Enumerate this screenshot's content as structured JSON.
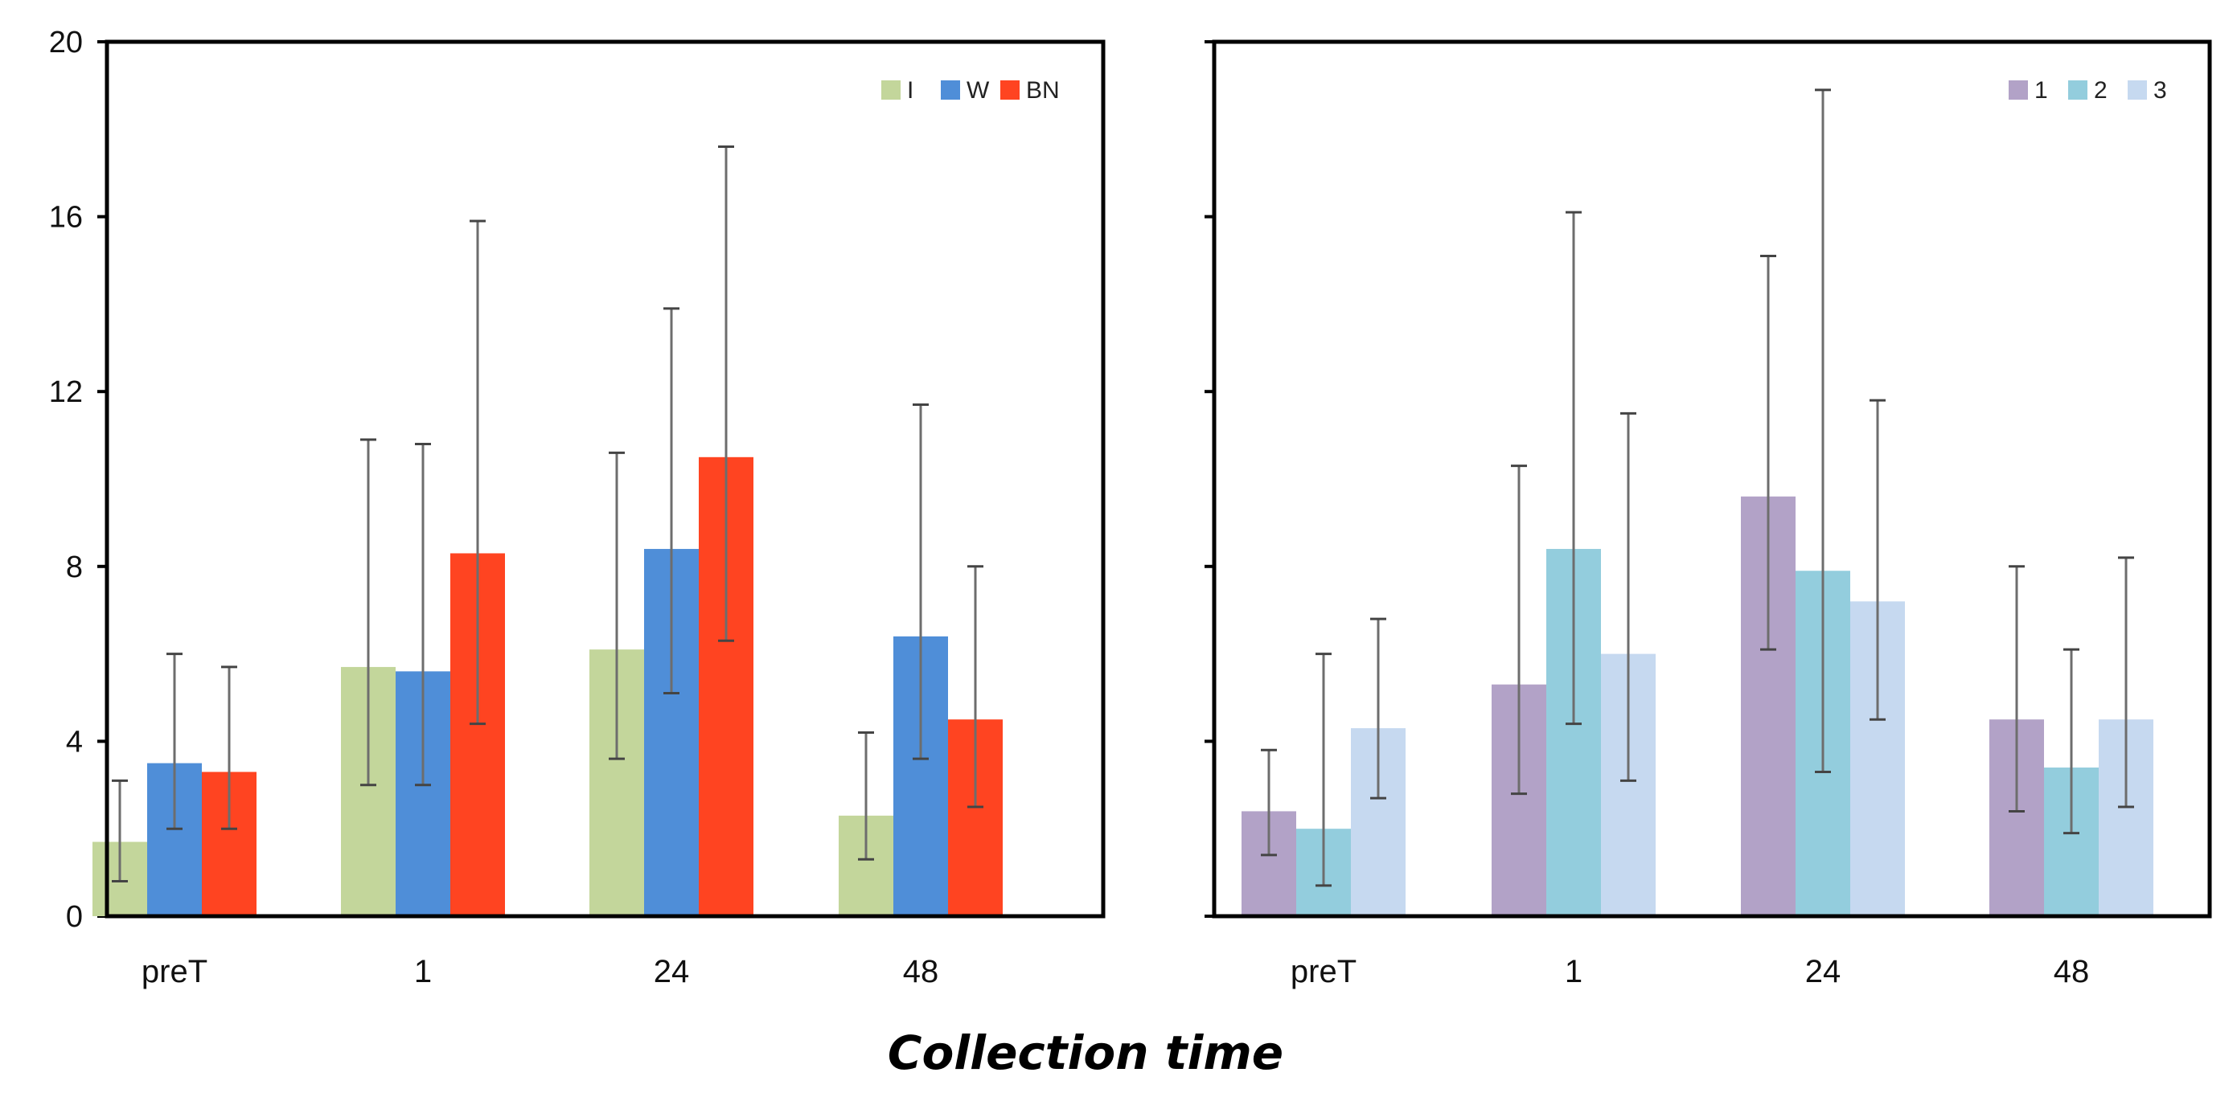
{
  "x_axis_title": "Collection time",
  "chart_data": [
    {
      "type": "bar",
      "title": "",
      "xlabel": "Collection time",
      "ylabel": "",
      "ylim": [
        0,
        20
      ],
      "yticks": [
        0,
        4,
        8,
        12,
        16,
        20
      ],
      "legend_position": "top-right",
      "categories": [
        "preT",
        "1",
        "24",
        "48"
      ],
      "series": [
        {
          "name": "I",
          "color": "#c3d69b",
          "values": [
            1.7,
            5.7,
            6.1,
            2.3
          ],
          "err_low": [
            0.8,
            3.0,
            3.6,
            1.3
          ],
          "err_high": [
            3.1,
            10.9,
            10.6,
            4.2
          ]
        },
        {
          "name": "W",
          "color": "#4f8ed8",
          "values": [
            3.5,
            5.6,
            8.4,
            6.4
          ],
          "err_low": [
            2.0,
            3.0,
            5.1,
            3.6
          ],
          "err_high": [
            6.0,
            10.8,
            13.9,
            11.7
          ]
        },
        {
          "name": "BN",
          "color": "#ff4421",
          "values": [
            3.3,
            8.3,
            10.5,
            4.5
          ],
          "err_low": [
            2.0,
            4.4,
            6.3,
            2.5
          ],
          "err_high": [
            5.7,
            15.9,
            17.6,
            8.0
          ]
        }
      ]
    },
    {
      "type": "bar",
      "title": "",
      "xlabel": "Collection time",
      "ylabel": "",
      "ylim": [
        0,
        20
      ],
      "yticks": [
        0,
        4,
        8,
        12,
        16,
        20
      ],
      "legend_position": "top-right",
      "categories": [
        "preT",
        "1",
        "24",
        "48"
      ],
      "series": [
        {
          "name": "1",
          "color": "#b2a2c7",
          "values": [
            2.4,
            5.3,
            9.6,
            4.5
          ],
          "err_low": [
            1.4,
            2.8,
            6.1,
            2.4
          ],
          "err_high": [
            3.8,
            10.3,
            15.1,
            8.0
          ]
        },
        {
          "name": "2",
          "color": "#93cddd",
          "values": [
            2.0,
            8.4,
            7.9,
            3.4
          ],
          "err_low": [
            0.7,
            4.4,
            3.3,
            1.9
          ],
          "err_high": [
            6.0,
            16.1,
            18.9,
            6.1
          ]
        },
        {
          "name": "3",
          "color": "#c6d9f0",
          "values": [
            4.3,
            6.0,
            7.2,
            4.5
          ],
          "err_low": [
            2.7,
            3.1,
            4.5,
            2.5
          ],
          "err_high": [
            6.8,
            11.5,
            11.8,
            8.2
          ]
        }
      ]
    }
  ]
}
